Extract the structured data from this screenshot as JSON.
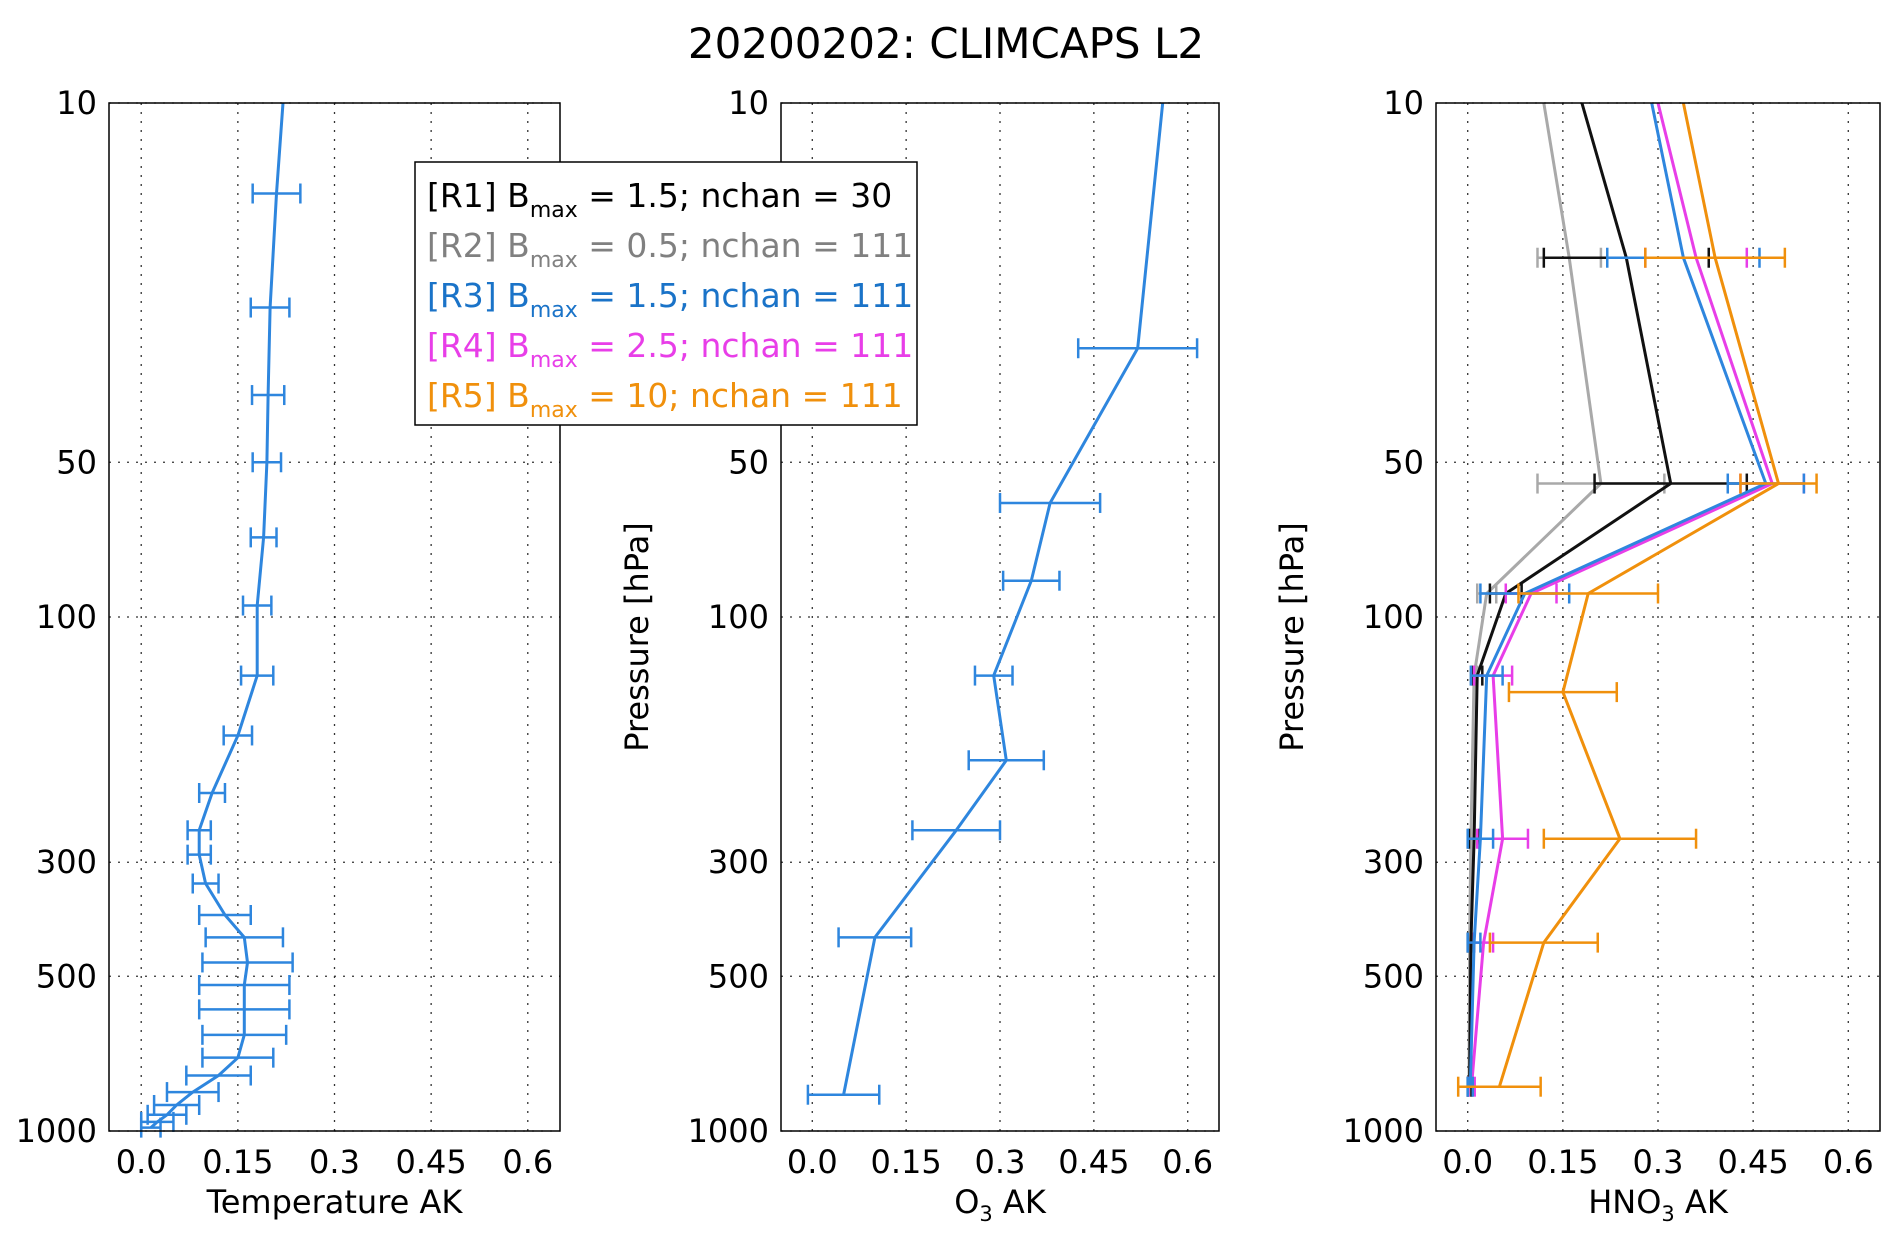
{
  "title": "20200202: CLIMCAPS L2",
  "chart_data": [
    {
      "type": "line",
      "xlabel": "Temperature AK",
      "xlabel_sub": "",
      "xlabel_post": "",
      "ylabel": "",
      "xlim": [
        -0.05,
        0.65
      ],
      "ylim": [
        1000,
        10
      ],
      "yscale": "log-reversed",
      "xticks": [
        "0.0",
        "0.15",
        "0.3",
        "0.45",
        "0.6"
      ],
      "xtick_values": [
        0.0,
        0.15,
        0.3,
        0.45,
        0.6
      ],
      "yticks": [
        "10",
        "50",
        "100",
        "300",
        "500",
        "1000"
      ],
      "ytick_values": [
        10,
        50,
        100,
        300,
        500,
        1000
      ],
      "grid": true,
      "series": [
        {
          "color": "#2e86de",
          "points": [
            {
              "p": 10,
              "x": 0.22
            },
            {
              "p": 15,
              "x": 0.21,
              "err": 0.037
            },
            {
              "p": 25,
              "x": 0.2,
              "err": 0.03
            },
            {
              "p": 37,
              "x": 0.197,
              "err": 0.025
            },
            {
              "p": 50,
              "x": 0.195,
              "err": 0.022
            },
            {
              "p": 70,
              "x": 0.19,
              "err": 0.02
            },
            {
              "p": 95,
              "x": 0.18,
              "err": 0.022
            },
            {
              "p": 130,
              "x": 0.18,
              "err": 0.025
            },
            {
              "p": 170,
              "x": 0.15,
              "err": 0.022
            },
            {
              "p": 220,
              "x": 0.11,
              "err": 0.02
            },
            {
              "p": 260,
              "x": 0.09,
              "err": 0.018
            },
            {
              "p": 290,
              "x": 0.09,
              "err": 0.018
            },
            {
              "p": 330,
              "x": 0.1,
              "err": 0.02
            },
            {
              "p": 380,
              "x": 0.13,
              "err": 0.04
            },
            {
              "p": 420,
              "x": 0.16,
              "err": 0.06
            },
            {
              "p": 470,
              "x": 0.165,
              "err": 0.07
            },
            {
              "p": 520,
              "x": 0.16,
              "err": 0.07
            },
            {
              "p": 580,
              "x": 0.16,
              "err": 0.07
            },
            {
              "p": 650,
              "x": 0.16,
              "err": 0.065
            },
            {
              "p": 720,
              "x": 0.15,
              "err": 0.055
            },
            {
              "p": 780,
              "x": 0.12,
              "err": 0.05
            },
            {
              "p": 840,
              "x": 0.08,
              "err": 0.04
            },
            {
              "p": 890,
              "x": 0.055,
              "err": 0.035
            },
            {
              "p": 930,
              "x": 0.04,
              "err": 0.03
            },
            {
              "p": 960,
              "x": 0.025,
              "err": 0.025
            },
            {
              "p": 985,
              "x": 0.015,
              "err": 0.015
            }
          ]
        }
      ]
    },
    {
      "type": "line",
      "xlabel": "O",
      "xlabel_sub": "3",
      "xlabel_post": " AK",
      "ylabel": "Pressure [hPa]",
      "xlim": [
        -0.05,
        0.65
      ],
      "ylim": [
        1000,
        10
      ],
      "yscale": "log-reversed",
      "xticks": [
        "0.0",
        "0.15",
        "0.3",
        "0.45",
        "0.6"
      ],
      "xtick_values": [
        0.0,
        0.15,
        0.3,
        0.45,
        0.6
      ],
      "yticks": [
        "10",
        "50",
        "100",
        "300",
        "500",
        "1000"
      ],
      "ytick_values": [
        10,
        50,
        100,
        300,
        500,
        1000
      ],
      "grid": true,
      "series": [
        {
          "color": "#2e86de",
          "points": [
            {
              "p": 10,
              "x": 0.56
            },
            {
              "p": 30,
              "x": 0.52,
              "err": 0.095
            },
            {
              "p": 60,
              "x": 0.38,
              "err": 0.08
            },
            {
              "p": 85,
              "x": 0.35,
              "err": 0.045
            },
            {
              "p": 130,
              "x": 0.29,
              "err": 0.03
            },
            {
              "p": 190,
              "x": 0.31,
              "err": 0.06
            },
            {
              "p": 260,
              "x": 0.23,
              "err": 0.07
            },
            {
              "p": 420,
              "x": 0.1,
              "err": 0.058
            },
            {
              "p": 850,
              "x": 0.05,
              "err": 0.057
            }
          ]
        }
      ]
    },
    {
      "type": "line",
      "xlabel": "HNO",
      "xlabel_sub": "3",
      "xlabel_post": " AK",
      "ylabel": "Pressure [hPa]",
      "xlim": [
        -0.05,
        0.65
      ],
      "ylim": [
        1000,
        10
      ],
      "yscale": "log-reversed",
      "xticks": [
        "0.0",
        "0.15",
        "0.3",
        "0.45",
        "0.6"
      ],
      "xtick_values": [
        0.0,
        0.15,
        0.3,
        0.45,
        0.6
      ],
      "yticks": [
        "10",
        "50",
        "100",
        "300",
        "500",
        "1000"
      ],
      "ytick_values": [
        10,
        50,
        100,
        300,
        500,
        1000
      ],
      "grid": true,
      "series": [
        {
          "color": "#a9a9a9",
          "points": [
            {
              "p": 10,
              "x": 0.12
            },
            {
              "p": 20,
              "x": 0.16,
              "err": 0.05
            },
            {
              "p": 55,
              "x": 0.21,
              "err": 0.1
            },
            {
              "p": 90,
              "x": 0.03,
              "err": 0.015
            },
            {
              "p": 130,
              "x": 0.01,
              "err": 0.005
            },
            {
              "p": 270,
              "x": 0.005,
              "err": 0.005
            },
            {
              "p": 430,
              "x": 0.003,
              "err": 0.003
            },
            {
              "p": 820,
              "x": 0.002,
              "err": 0.002
            }
          ]
        },
        {
          "color": "#111111",
          "points": [
            {
              "p": 10,
              "x": 0.18
            },
            {
              "p": 20,
              "x": 0.25,
              "err": 0.13
            },
            {
              "p": 55,
              "x": 0.32,
              "err": 0.12
            },
            {
              "p": 90,
              "x": 0.06,
              "err": 0.025
            },
            {
              "p": 130,
              "x": 0.015,
              "err": 0.008
            },
            {
              "p": 270,
              "x": 0.01,
              "err": 0.008
            },
            {
              "p": 430,
              "x": 0.005,
              "err": 0.005
            },
            {
              "p": 820,
              "x": 0.003,
              "err": 0.003
            }
          ]
        },
        {
          "color": "#e83ee8",
          "points": [
            {
              "p": 10,
              "x": 0.3
            },
            {
              "p": 20,
              "x": 0.36,
              "err": 0.08
            },
            {
              "p": 55,
              "x": 0.48,
              "err": 0.05
            },
            {
              "p": 90,
              "x": 0.1,
              "err": 0.04
            },
            {
              "p": 130,
              "x": 0.04,
              "err": 0.03
            },
            {
              "p": 270,
              "x": 0.055,
              "err": 0.04
            },
            {
              "p": 430,
              "x": 0.025,
              "err": 0.015
            },
            {
              "p": 820,
              "x": 0.006,
              "err": 0.005
            }
          ]
        },
        {
          "color": "#2e86de",
          "points": [
            {
              "p": 10,
              "x": 0.29
            },
            {
              "p": 20,
              "x": 0.34,
              "err": 0.12
            },
            {
              "p": 55,
              "x": 0.47,
              "err": 0.06
            },
            {
              "p": 90,
              "x": 0.09,
              "err": 0.07
            },
            {
              "p": 130,
              "x": 0.03,
              "err": 0.025
            },
            {
              "p": 270,
              "x": 0.02,
              "err": 0.02
            },
            {
              "p": 430,
              "x": 0.01,
              "err": 0.01
            },
            {
              "p": 820,
              "x": 0.004,
              "err": 0.004
            }
          ]
        },
        {
          "color": "#f0900c",
          "points": [
            {
              "p": 10,
              "x": 0.34
            },
            {
              "p": 20,
              "x": 0.39,
              "err": 0.11
            },
            {
              "p": 55,
              "x": 0.49,
              "err": 0.06
            },
            {
              "p": 90,
              "x": 0.19,
              "err": 0.11
            },
            {
              "p": 140,
              "x": 0.15,
              "err": 0.085
            },
            {
              "p": 270,
              "x": 0.24,
              "err": 0.12
            },
            {
              "p": 430,
              "x": 0.12,
              "err": 0.085
            },
            {
              "p": 820,
              "x": 0.05,
              "err": 0.065
            }
          ]
        }
      ]
    }
  ],
  "legend": [
    {
      "pre": "[R1] B",
      "sub": "max",
      "post": " = 1.5; nchan = 30",
      "color": "#000000"
    },
    {
      "pre": "[R2] B",
      "sub": "max",
      "post": " = 0.5; nchan = 111",
      "color": "#808080"
    },
    {
      "pre": "[R3] B",
      "sub": "max",
      "post": " = 1.5; nchan = 111",
      "color": "#1a73c8"
    },
    {
      "pre": "[R4] B",
      "sub": "max",
      "post": " = 2.5; nchan = 111",
      "color": "#e83ee8"
    },
    {
      "pre": "[R5] B",
      "sub": "max",
      "post": " = 10;  nchan = 111",
      "color": "#f0900c"
    }
  ]
}
